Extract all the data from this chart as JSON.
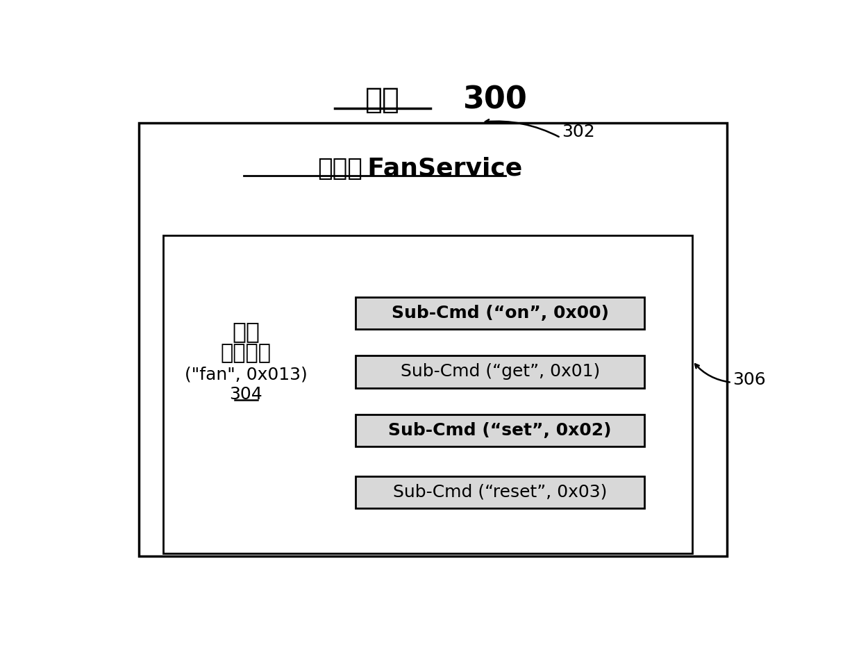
{
  "title_chinese": "框架",
  "title_number": "300",
  "label_302": "302",
  "label_306": "306",
  "label_304": "304",
  "component_label_cn": "组件：",
  "component_label_en": "  FanService",
  "cmd_label_line1": "命令",
  "cmd_label_line2": "控制风扇",
  "cmd_label_line3": "(\"fan\", 0x013)",
  "sub_cmds": [
    "Sub-Cmd (“on”, 0x00)",
    "Sub-Cmd (“get”, 0x01)",
    "Sub-Cmd (“set”, 0x02)",
    "Sub-Cmd (“reset”, 0x03)"
  ],
  "bg_color": "#ffffff",
  "outer_box_color": "#000000",
  "inner_box_color": "#000000",
  "subcmd_box_fill": "#d8d8d8",
  "subcmd_box_edge": "#000000",
  "text_color": "#000000",
  "figsize": [
    12.4,
    9.65
  ],
  "dpi": 100
}
